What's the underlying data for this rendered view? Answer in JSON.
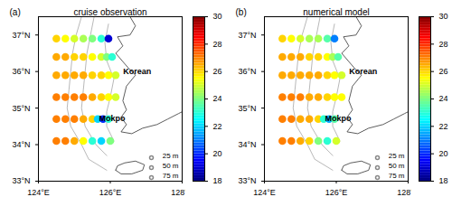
{
  "chart_data": [
    {
      "type": "scatter",
      "panel_label": "(a)",
      "title": "cruise observation",
      "xlim": [
        124,
        128
      ],
      "ylim": [
        33,
        37.5
      ],
      "xticks": [
        {
          "value": 124,
          "label": "124°E"
        },
        {
          "value": 126,
          "label": "126°E"
        },
        {
          "value": 128,
          "label": "128°E"
        }
      ],
      "yticks": [
        {
          "value": 33,
          "label": "33°N"
        },
        {
          "value": 34,
          "label": "34°N"
        },
        {
          "value": 35,
          "label": "35°N"
        },
        {
          "value": 36,
          "label": "36°N"
        },
        {
          "value": 37,
          "label": "37°N"
        }
      ],
      "colorbar": {
        "range": [
          18,
          30
        ],
        "ticks": [
          18,
          20,
          22,
          24,
          26,
          28,
          30
        ]
      },
      "stations": [
        {
          "lat": 36.9,
          "lon": [
            124.5,
            124.75,
            125,
            125.25,
            125.5,
            125.75,
            125.95
          ],
          "temperature": [
            26,
            25.5,
            25,
            24.5,
            24,
            23,
            19
          ]
        },
        {
          "lat": 36.4,
          "lon": [
            124.5,
            124.75,
            125,
            125.25,
            125.5,
            125.75,
            125.9,
            126.05
          ],
          "temperature": [
            26.5,
            26.5,
            26,
            26,
            25.5,
            25,
            24,
            23
          ]
        },
        {
          "lat": 35.9,
          "lon": [
            124.5,
            124.75,
            125,
            125.25,
            125.5,
            125.75,
            125.95,
            126.15
          ],
          "temperature": [
            26.5,
            26.5,
            26.5,
            26.5,
            26,
            26,
            25.5,
            25
          ]
        },
        {
          "lat": 35.3,
          "lon": [
            124.5,
            124.75,
            125,
            125.25,
            125.5,
            125.75,
            125.95,
            126.15
          ],
          "temperature": [
            27,
            27,
            27,
            27,
            26.5,
            26,
            25.5,
            25
          ]
        },
        {
          "lat": 34.7,
          "lon": [
            124.5,
            124.75,
            125,
            125.25,
            125.5,
            125.65,
            125.8,
            125.95
          ],
          "temperature": [
            27,
            27,
            27,
            26.5,
            26,
            22,
            20,
            23
          ]
        },
        {
          "lat": 34.1,
          "lon": [
            124.5,
            124.75,
            125,
            125.25,
            125.5,
            125.75,
            126.0
          ],
          "temperature": [
            27,
            27,
            26.5,
            25.5,
            23,
            22,
            24
          ]
        }
      ],
      "contours": [
        {
          "name": "25 m",
          "points": [
            [
              125.95,
              37.3
            ],
            [
              125.85,
              36.8
            ],
            [
              125.9,
              36.3
            ],
            [
              126.1,
              35.8
            ],
            [
              126.0,
              35.3
            ],
            [
              125.9,
              34.9
            ],
            [
              125.9,
              34.5
            ],
            [
              126.1,
              34.1
            ]
          ]
        },
        {
          "name": "50 m",
          "points": [
            [
              125.55,
              37.5
            ],
            [
              125.45,
              37.0
            ],
            [
              125.35,
              36.5
            ],
            [
              125.3,
              36.0
            ],
            [
              125.25,
              35.5
            ],
            [
              125.2,
              35.0
            ],
            [
              125.3,
              34.5
            ],
            [
              125.6,
              34.0
            ],
            [
              125.9,
              33.7
            ]
          ]
        },
        {
          "name": "75 m",
          "points": [
            [
              125.2,
              37.5
            ],
            [
              125.05,
              37.0
            ],
            [
              124.95,
              36.5
            ],
            [
              124.9,
              36.0
            ],
            [
              124.85,
              35.5
            ],
            [
              124.8,
              35.0
            ],
            [
              124.9,
              34.5
            ],
            [
              125.2,
              34.0
            ],
            [
              125.4,
              33.6
            ],
            [
              125.9,
              33.3
            ]
          ]
        }
      ],
      "coastlines": [
        [
          [
            126.55,
            37.5
          ],
          [
            126.7,
            37.25
          ],
          [
            126.55,
            37.0
          ],
          [
            126.2,
            36.95
          ],
          [
            126.35,
            36.7
          ],
          [
            126.15,
            36.5
          ],
          [
            126.5,
            36.1
          ],
          [
            126.7,
            35.9
          ],
          [
            126.45,
            35.6
          ],
          [
            126.35,
            35.2
          ],
          [
            126.45,
            34.95
          ],
          [
            126.3,
            34.75
          ],
          [
            126.45,
            34.55
          ],
          [
            126.3,
            34.35
          ],
          [
            126.6,
            34.3
          ],
          [
            126.9,
            34.45
          ],
          [
            127.3,
            34.55
          ],
          [
            127.6,
            34.7
          ],
          [
            127.9,
            34.85
          ],
          [
            128.0,
            34.9
          ]
        ],
        [
          [
            126.15,
            33.3
          ],
          [
            126.3,
            33.2
          ],
          [
            126.6,
            33.2
          ],
          [
            126.9,
            33.3
          ],
          [
            126.95,
            33.45
          ],
          [
            126.7,
            33.55
          ],
          [
            126.4,
            33.5
          ],
          [
            126.2,
            33.42
          ],
          [
            126.15,
            33.3
          ]
        ]
      ],
      "annotations": [
        {
          "text": "Korean",
          "x": 126.75,
          "y": 36.0
        },
        {
          "text": "Mokpo",
          "x": 126.05,
          "y": 34.72
        }
      ]
    },
    {
      "type": "scatter",
      "panel_label": "(b)",
      "title": "numerical model",
      "xlim": [
        124,
        128
      ],
      "ylim": [
        33,
        37.5
      ],
      "xticks": [
        {
          "value": 124,
          "label": "124°E"
        },
        {
          "value": 126,
          "label": "126°E"
        },
        {
          "value": 128,
          "label": "128°E"
        }
      ],
      "yticks": [
        {
          "value": 33,
          "label": "33°N"
        },
        {
          "value": 34,
          "label": "34°N"
        },
        {
          "value": 35,
          "label": "35°N"
        },
        {
          "value": 36,
          "label": "36°N"
        },
        {
          "value": 37,
          "label": "37°N"
        }
      ],
      "colorbar": {
        "range": [
          18,
          30
        ],
        "ticks": [
          18,
          20,
          22,
          24,
          26,
          28,
          30
        ]
      },
      "stations": [
        {
          "lat": 36.9,
          "lon": [
            124.5,
            124.75,
            125,
            125.25,
            125.5,
            125.75,
            125.95
          ],
          "temperature": [
            26,
            25.5,
            25,
            24.5,
            24.5,
            23.5,
            21
          ]
        },
        {
          "lat": 36.4,
          "lon": [
            124.5,
            124.75,
            125,
            125.25,
            125.5,
            125.75,
            125.9,
            126.05
          ],
          "temperature": [
            26.5,
            26.5,
            26.5,
            26,
            26,
            25.5,
            24.5,
            23.5
          ]
        },
        {
          "lat": 35.9,
          "lon": [
            124.5,
            124.75,
            125,
            125.25,
            125.5,
            125.75,
            125.95,
            126.15
          ],
          "temperature": [
            26.5,
            26.5,
            26.5,
            26.5,
            26.5,
            26,
            25.5,
            25
          ]
        },
        {
          "lat": 35.3,
          "lon": [
            124.5,
            124.75,
            125,
            125.25,
            125.5,
            125.75,
            125.95,
            126.15
          ],
          "temperature": [
            27,
            27,
            27,
            26.5,
            26.5,
            26,
            25.5,
            25.5
          ]
        },
        {
          "lat": 34.7,
          "lon": [
            124.5,
            124.75,
            125,
            125.25,
            125.5,
            125.65,
            125.8,
            125.95
          ],
          "temperature": [
            27,
            27,
            26.5,
            26.5,
            26,
            23,
            21.5,
            23.5
          ]
        },
        {
          "lat": 34.1,
          "lon": [
            124.5,
            124.75,
            125,
            125.25,
            125.5,
            125.75,
            126.0
          ],
          "temperature": [
            27,
            27,
            26.5,
            26,
            24,
            23,
            25
          ]
        }
      ],
      "contours": [
        {
          "name": "25 m",
          "points": [
            [
              125.95,
              37.3
            ],
            [
              125.85,
              36.8
            ],
            [
              125.9,
              36.3
            ],
            [
              126.1,
              35.8
            ],
            [
              126.0,
              35.3
            ],
            [
              125.9,
              34.9
            ],
            [
              125.9,
              34.5
            ],
            [
              126.1,
              34.1
            ]
          ]
        },
        {
          "name": "50 m",
          "points": [
            [
              125.55,
              37.5
            ],
            [
              125.45,
              37.0
            ],
            [
              125.35,
              36.5
            ],
            [
              125.3,
              36.0
            ],
            [
              125.25,
              35.5
            ],
            [
              125.2,
              35.0
            ],
            [
              125.3,
              34.5
            ],
            [
              125.6,
              34.0
            ],
            [
              125.9,
              33.7
            ]
          ]
        },
        {
          "name": "75 m",
          "points": [
            [
              125.2,
              37.5
            ],
            [
              125.05,
              37.0
            ],
            [
              124.95,
              36.5
            ],
            [
              124.9,
              36.0
            ],
            [
              124.85,
              35.5
            ],
            [
              124.8,
              35.0
            ],
            [
              124.9,
              34.5
            ],
            [
              125.2,
              34.0
            ],
            [
              125.4,
              33.6
            ],
            [
              125.9,
              33.3
            ]
          ]
        }
      ],
      "coastlines": [
        [
          [
            126.55,
            37.5
          ],
          [
            126.7,
            37.25
          ],
          [
            126.55,
            37.0
          ],
          [
            126.2,
            36.95
          ],
          [
            126.35,
            36.7
          ],
          [
            126.15,
            36.5
          ],
          [
            126.5,
            36.1
          ],
          [
            126.7,
            35.9
          ],
          [
            126.45,
            35.6
          ],
          [
            126.35,
            35.2
          ],
          [
            126.45,
            34.95
          ],
          [
            126.3,
            34.75
          ],
          [
            126.45,
            34.55
          ],
          [
            126.3,
            34.35
          ],
          [
            126.6,
            34.3
          ],
          [
            126.9,
            34.45
          ],
          [
            127.3,
            34.55
          ],
          [
            127.6,
            34.7
          ],
          [
            127.9,
            34.85
          ],
          [
            128.0,
            34.9
          ]
        ],
        [
          [
            126.15,
            33.3
          ],
          [
            126.3,
            33.2
          ],
          [
            126.6,
            33.2
          ],
          [
            126.9,
            33.3
          ],
          [
            126.95,
            33.45
          ],
          [
            126.7,
            33.55
          ],
          [
            126.4,
            33.5
          ],
          [
            126.2,
            33.42
          ],
          [
            126.15,
            33.3
          ]
        ]
      ],
      "annotations": [
        {
          "text": "Korean",
          "x": 126.75,
          "y": 36.0
        },
        {
          "text": "Mokpo",
          "x": 126.05,
          "y": 34.72
        }
      ]
    }
  ]
}
